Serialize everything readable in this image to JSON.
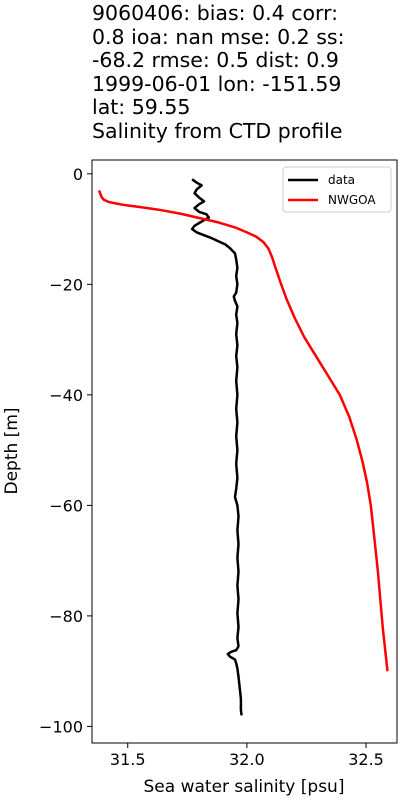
{
  "chart_data": {
    "type": "line",
    "title_lines": [
      "9060406: bias: 0.4  corr:",
      "0.8  ioa: nan  mse: 0.2  ss:",
      "-68.2  rmse: 0.5  dist: 0.9",
      "1999-06-01 lon: -151.59",
      "lat: 59.55",
      "Salinity from CTD profile"
    ],
    "xlabel": "Sea water salinity [psu]",
    "ylabel": "Depth [m]",
    "xlim": [
      31.35,
      32.63
    ],
    "ylim": [
      -103.0,
      2.5
    ],
    "x_ticks": [
      31.5,
      32.0,
      32.5
    ],
    "x_tick_labels": [
      "31.5",
      "32.0",
      "32.5"
    ],
    "y_ticks": [
      0,
      -20,
      -40,
      -60,
      -80,
      -100
    ],
    "y_tick_labels": [
      "0",
      "−20",
      "−40",
      "−60",
      "−80",
      "−100"
    ],
    "grid": false,
    "legend_position": "top-right",
    "series": [
      {
        "name": "data",
        "color": "#000000",
        "points": [
          [
            31.77,
            -1.0
          ],
          [
            31.79,
            -1.6
          ],
          [
            31.81,
            -2.1
          ],
          [
            31.79,
            -2.8
          ],
          [
            31.78,
            -3.5
          ],
          [
            31.8,
            -4.3
          ],
          [
            31.82,
            -5.0
          ],
          [
            31.8,
            -5.5
          ],
          [
            31.78,
            -6.2
          ],
          [
            31.8,
            -6.9
          ],
          [
            31.83,
            -7.3
          ],
          [
            31.84,
            -7.9
          ],
          [
            31.82,
            -8.4
          ],
          [
            31.8,
            -8.9
          ],
          [
            31.78,
            -9.4
          ],
          [
            31.77,
            -10.0
          ],
          [
            31.79,
            -10.6
          ],
          [
            31.82,
            -11.1
          ],
          [
            31.85,
            -11.6
          ],
          [
            31.88,
            -12.2
          ],
          [
            31.91,
            -12.8
          ],
          [
            31.93,
            -13.5
          ],
          [
            31.95,
            -14.4
          ],
          [
            31.955,
            -15.5
          ],
          [
            31.96,
            -17.0
          ],
          [
            31.955,
            -18.5
          ],
          [
            31.96,
            -20.0
          ],
          [
            31.955,
            -21.5
          ],
          [
            31.945,
            -22.2
          ],
          [
            31.95,
            -23.0
          ],
          [
            31.96,
            -24.0
          ],
          [
            31.955,
            -25.5
          ],
          [
            31.96,
            -27.0
          ],
          [
            31.955,
            -29.0
          ],
          [
            31.96,
            -31.0
          ],
          [
            31.955,
            -33.0
          ],
          [
            31.96,
            -35.0
          ],
          [
            31.955,
            -37.5
          ],
          [
            31.96,
            -40.0
          ],
          [
            31.955,
            -42.5
          ],
          [
            31.96,
            -45.0
          ],
          [
            31.955,
            -47.5
          ],
          [
            31.96,
            -50.0
          ],
          [
            31.955,
            -52.5
          ],
          [
            31.96,
            -55.0
          ],
          [
            31.955,
            -57.0
          ],
          [
            31.95,
            -58.5
          ],
          [
            31.96,
            -60.0
          ],
          [
            31.965,
            -62.0
          ],
          [
            31.96,
            -64.5
          ],
          [
            31.965,
            -67.0
          ],
          [
            31.96,
            -69.5
          ],
          [
            31.965,
            -72.0
          ],
          [
            31.96,
            -74.5
          ],
          [
            31.965,
            -77.0
          ],
          [
            31.96,
            -79.5
          ],
          [
            31.965,
            -82.0
          ],
          [
            31.96,
            -84.0
          ],
          [
            31.965,
            -85.5
          ],
          [
            31.955,
            -86.2
          ],
          [
            31.94,
            -86.4
          ],
          [
            31.93,
            -86.6
          ],
          [
            31.92,
            -86.9
          ],
          [
            31.93,
            -87.4
          ],
          [
            31.95,
            -87.9
          ],
          [
            31.955,
            -88.6
          ],
          [
            31.96,
            -89.5
          ],
          [
            31.965,
            -91.0
          ],
          [
            31.97,
            -93.0
          ],
          [
            31.975,
            -95.0
          ],
          [
            31.975,
            -97.0
          ],
          [
            31.978,
            -98.0
          ]
        ]
      },
      {
        "name": "NWGOA",
        "color": "#ff0000",
        "points": [
          [
            31.38,
            -3.0
          ],
          [
            31.385,
            -3.6
          ],
          [
            31.39,
            -4.2
          ],
          [
            31.4,
            -4.7
          ],
          [
            31.42,
            -5.1
          ],
          [
            31.48,
            -5.6
          ],
          [
            31.55,
            -6.0
          ],
          [
            31.63,
            -6.5
          ],
          [
            31.72,
            -7.2
          ],
          [
            31.8,
            -8.0
          ],
          [
            31.88,
            -8.8
          ],
          [
            31.95,
            -9.7
          ],
          [
            32.0,
            -10.6
          ],
          [
            32.04,
            -11.4
          ],
          [
            32.07,
            -12.4
          ],
          [
            32.09,
            -13.5
          ],
          [
            32.105,
            -15.0
          ],
          [
            32.12,
            -17.0
          ],
          [
            32.14,
            -19.5
          ],
          [
            32.165,
            -22.5
          ],
          [
            32.2,
            -26.0
          ],
          [
            32.24,
            -29.5
          ],
          [
            32.29,
            -33.0
          ],
          [
            32.34,
            -36.5
          ],
          [
            32.39,
            -40.0
          ],
          [
            32.43,
            -44.0
          ],
          [
            32.46,
            -48.0
          ],
          [
            32.485,
            -52.0
          ],
          [
            32.505,
            -56.0
          ],
          [
            32.52,
            -60.0
          ],
          [
            32.535,
            -66.0
          ],
          [
            32.55,
            -72.0
          ],
          [
            32.56,
            -77.0
          ],
          [
            32.57,
            -82.0
          ],
          [
            32.58,
            -86.0
          ],
          [
            32.585,
            -88.0
          ],
          [
            32.59,
            -90.0
          ]
        ]
      }
    ]
  }
}
